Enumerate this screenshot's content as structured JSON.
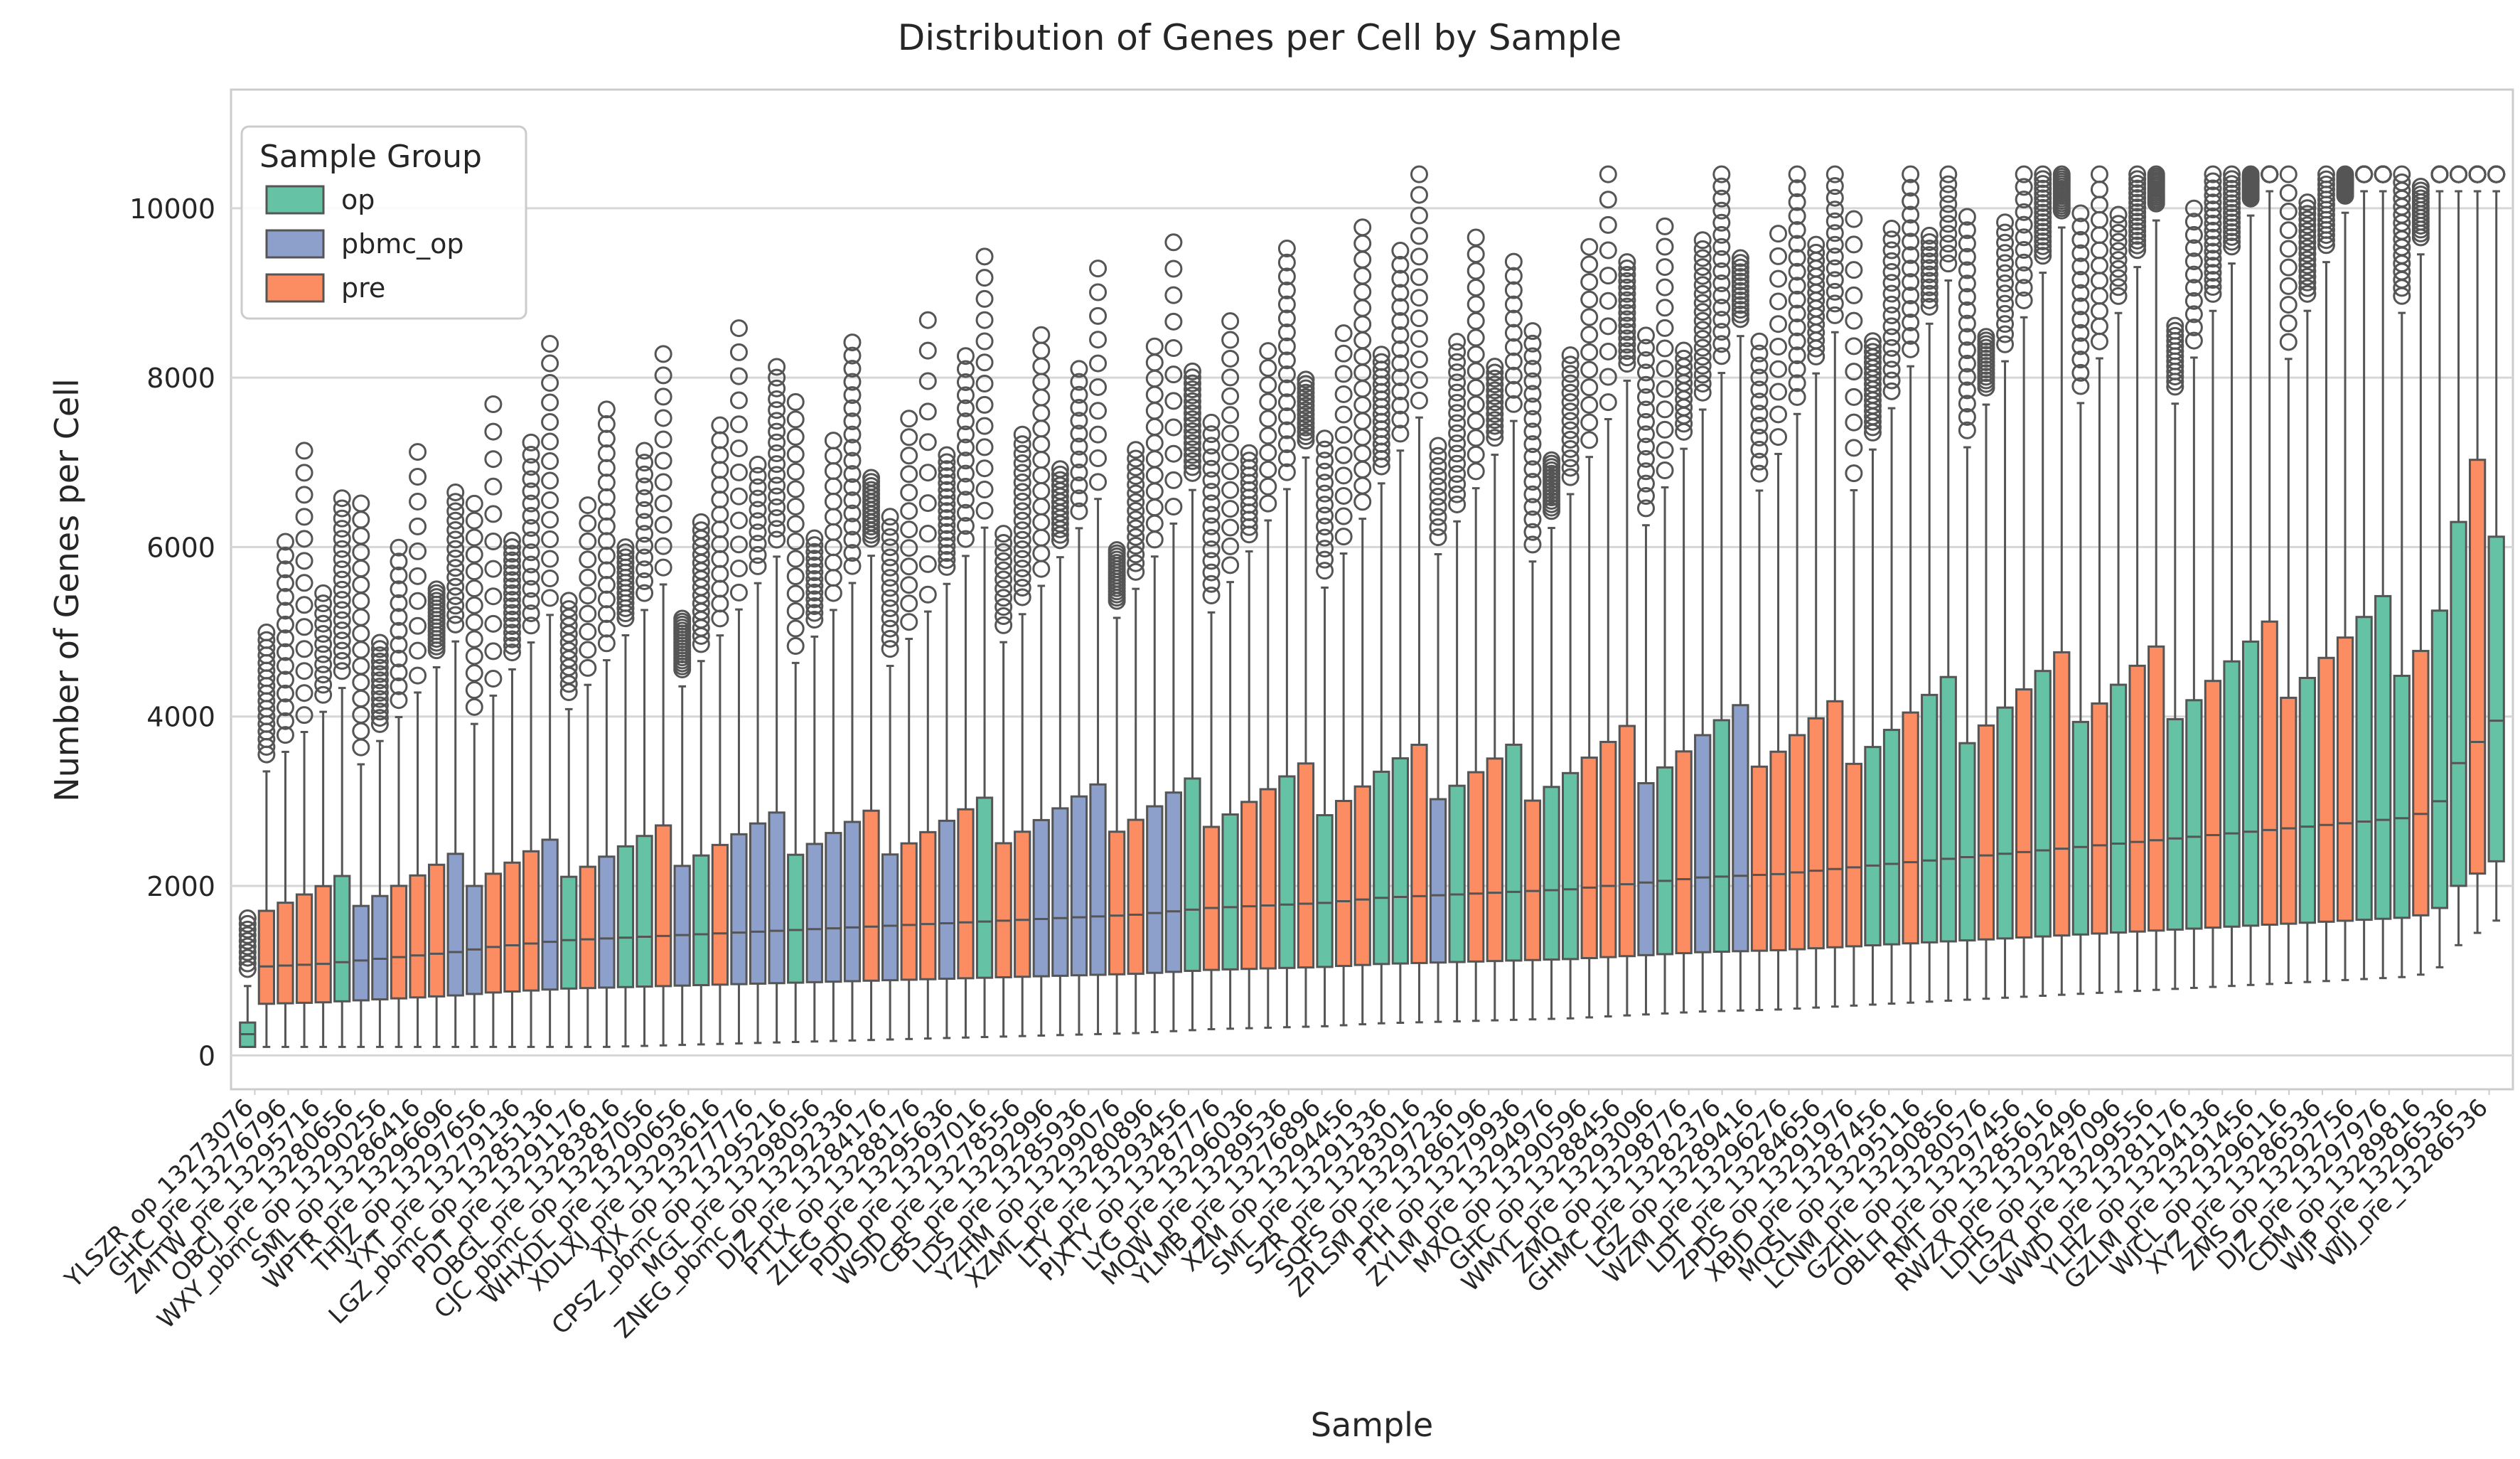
{
  "chart_data": {
    "type": "box",
    "title": "Distribution of Genes per Cell by Sample",
    "xlabel": "Sample",
    "ylabel": "Number of Genes per Cell",
    "ylim": [
      -400,
      11400
    ],
    "yticks": [
      0,
      2000,
      4000,
      6000,
      8000,
      10000
    ],
    "grid": true,
    "legend": {
      "title": "Sample Group",
      "placement": "top-left",
      "entries": [
        {
          "name": "op",
          "color": "#66c2a5"
        },
        {
          "name": "pbmc_op",
          "color": "#8da0cb"
        },
        {
          "name": "pre",
          "color": "#fc8d62"
        }
      ]
    },
    "box_edge_color": "#555555",
    "n_samples": 120,
    "groups_pattern": "op,pre,pre,pre,pre,op,pbmc_op,pbmc_op,pre,pre,pre,pbmc_op,pbmc_op,pre,pre,pre,pbmc_op,op,pre,pbmc_op,op,op,pre,pbmc_op,op,pre,pbmc_op,pbmc_op,pbmc_op,op,pbmc_op,pbmc_op,pbmc_op,pre,pbmc_op,pre,pre,pbmc_op,pre,op,pre,pre,pbmc_op,pbmc_op,pbmc_op,pbmc_op,pre,pre,pbmc_op,pbmc_op,op,pre,op,pre,pre,op,pre,op,pre,pre,op,op,pre,pbmc_op,op,pre,pre,op,pre,op,op,pre,pre,pre,pbmc_op,op,pre,pbmc_op,op,pbmc_op,pre,pre,pre,pre,pre,pre,op,op,pre,op,op,op,pre,op,pre,op,pre,op,pre,op,pre,pre,op,op,pre,op,op,pre,pre,op,pre,pre,op,op,op,pre,op,op,pre,op,pre",
    "medians_approx": [
      250,
      1050,
      1060,
      1070,
      1080,
      1100,
      1120,
      1140,
      1160,
      1180,
      1200,
      1220,
      1250,
      1280,
      1300,
      1320,
      1340,
      1360,
      1370,
      1380,
      1390,
      1400,
      1410,
      1420,
      1430,
      1440,
      1450,
      1460,
      1470,
      1480,
      1490,
      1500,
      1510,
      1520,
      1530,
      1540,
      1550,
      1560,
      1570,
      1580,
      1590,
      1600,
      1610,
      1620,
      1630,
      1640,
      1650,
      1660,
      1680,
      1700,
      1720,
      1740,
      1750,
      1760,
      1770,
      1780,
      1790,
      1800,
      1820,
      1840,
      1860,
      1870,
      1880,
      1890,
      1900,
      1910,
      1920,
      1930,
      1940,
      1950,
      1960,
      1980,
      2000,
      2020,
      2040,
      2060,
      2080,
      2100,
      2110,
      2120,
      2130,
      2140,
      2160,
      2180,
      2200,
      2220,
      2240,
      2260,
      2280,
      2300,
      2320,
      2340,
      2360,
      2380,
      2400,
      2420,
      2440,
      2460,
      2480,
      2500,
      2520,
      2540,
      2560,
      2580,
      2600,
      2620,
      2640,
      2660,
      2680,
      2700,
      2720,
      2740,
      2760,
      2780,
      2800,
      2850,
      3000,
      3450,
      3700,
      3950
    ],
    "x_tick_labels_visible": [
      "YLSZR_op_13273076",
      "GHC_pre_13276796",
      "ZMTW_pre_13295716",
      "OBCJ_pre_13280656",
      "WXY_pbmc_op_13290256",
      "SML_op_13286416",
      "WPTR_pre_13296696",
      "THJZ_op_13297656",
      "YXT_pre_13279136",
      "LGZ_pbmc_op_13285136",
      "PDT_pre_13291176",
      "OBGL_pre_13283816",
      "CJC_pbmc_op_13287056",
      "WHXDL_pre_13290656",
      "XDLXJ_pre_13293616",
      "XJX_op_13277776",
      "CPSZ_pbmc_op_13295216",
      "MGL_pre_13298056",
      "ZNEG_pbmc_op_13292336",
      "DJZ_pre_13284176",
      "PTLX_op_13288176",
      "ZLEG_pre_13295636",
      "PDD_pre_13297016",
      "WSJD_pre_13278556",
      "CBS_pre_13292996",
      "LDS_pre_13285936",
      "YZHM_op_13299076",
      "XZML_pre_13280896",
      "LTY_pre_13293456",
      "PJXTY_op_13287776",
      "LYG_pre_13296036",
      "MQW_pre_13289536",
      "YLMB_pre_13276896",
      "XZM_op_13294456",
      "SML_pre_13291336",
      "SZR_pre_13283016",
      "SQFS_op_13297236",
      "ZPLSM_pre_13286196",
      "PTH_op_13279936",
      "ZYLM_pre_13294976",
      "MXQ_op_13290596",
      "GHC_op_13288456",
      "WMYL_pre_13293096",
      "ZMQ_op_13298776",
      "GHMC_pre_13282376",
      "LGZ_op_13289416",
      "WZM_pre_13296276",
      "LDT_pre_13284656",
      "ZPDS_op_13291976",
      "XBJD_pre_13287456",
      "MQSL_op_13295116",
      "LCNM_pre_13290856",
      "GZHL_op_13280576",
      "OBLH_pre_13297456",
      "RMT_op_13285616",
      "RWZX_pre_13292496",
      "LDHS_op_13287096",
      "LGZY_pre_13299556",
      "WWD_pre_13281176",
      "YLHZ_op_13294136",
      "GZLM_pre_13291456",
      "WJCL_op_13296116",
      "XYZ_pre_13286536",
      "ZMS_op_13292756",
      "DJZ_pre_13297976",
      "CDM_op_13289816",
      "WJP_pre_13296536",
      "WJJ_pre_13286536"
    ]
  }
}
